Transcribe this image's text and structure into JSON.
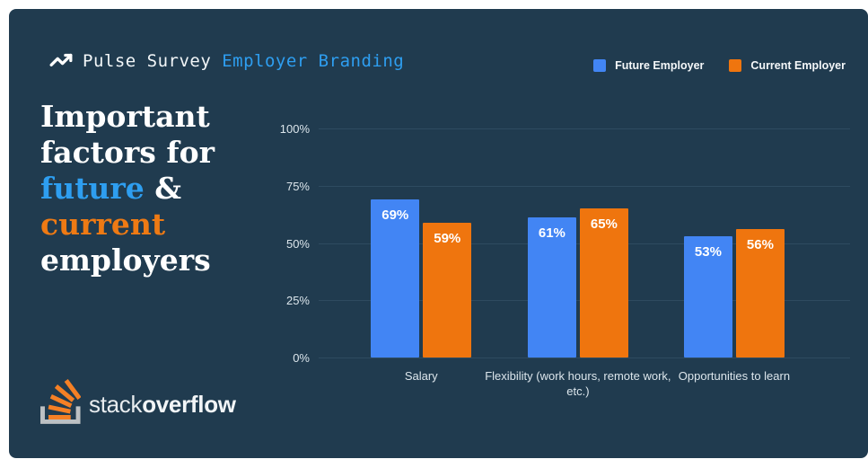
{
  "page": {
    "background": "#ffffff",
    "card_background": "#203B4F"
  },
  "header": {
    "icon": "trending-up-icon",
    "title_primary": "Pulse Survey",
    "title_secondary": "Employer Branding",
    "secondary_color": "#2E9EF0"
  },
  "legend": [
    {
      "label": "Future Employer",
      "color": "#4285F4"
    },
    {
      "label": "Current Employer",
      "color": "#EF750E"
    }
  ],
  "headline": {
    "segments": [
      {
        "text": "Important factors for ",
        "color": "#FFFFFF"
      },
      {
        "text": "future",
        "color": "#2E9EF0"
      },
      {
        "text": " & ",
        "color": "#FFFFFF"
      },
      {
        "text": "current",
        "color": "#EE7A14"
      },
      {
        "text": " employers",
        "color": "#FFFFFF"
      }
    ]
  },
  "chart_data": {
    "type": "bar",
    "categories": [
      "Salary",
      "Flexibility (work hours, remote work, etc.)",
      "Opportunities to learn"
    ],
    "series": [
      {
        "name": "Future Employer",
        "color": "#4285F4",
        "values": [
          69,
          61,
          53
        ]
      },
      {
        "name": "Current Employer",
        "color": "#EF750E",
        "values": [
          59,
          65,
          56
        ]
      }
    ],
    "value_suffix": "%",
    "y_ticks": [
      "0%",
      "25%",
      "50%",
      "75%",
      "100%"
    ],
    "ylim": [
      0,
      100
    ],
    "grid": true,
    "legend_position": "top-right",
    "gridline_color": "#2E4B60"
  },
  "logo": {
    "icon": "stackoverflow-icon",
    "brand_light": "stack",
    "brand_bold": "overflow"
  }
}
